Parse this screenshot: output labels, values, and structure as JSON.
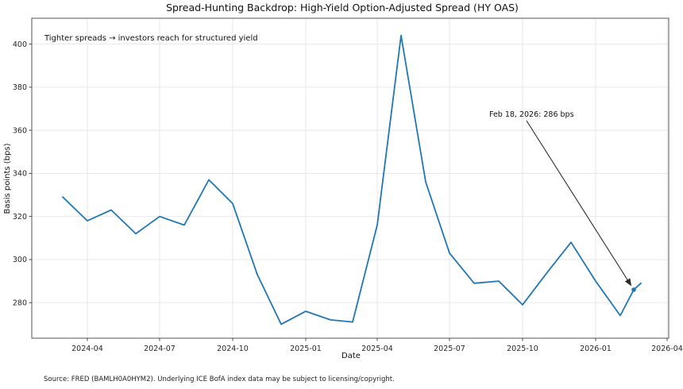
{
  "chart_data": {
    "type": "line",
    "title": "Spread-Hunting Backdrop: High-Yield Option-Adjusted Spread (HY OAS)",
    "xlabel": "Date",
    "ylabel": "Basis points (bps)",
    "source": "Source: FRED (BAMLH0A0HYM2). Underlying ICE BofA index data may be subject to licensing/copyright.",
    "grid": true,
    "legend": "none",
    "ylim": [
      263.5,
      412
    ],
    "xlim": [
      "2024-01-22",
      "2026-04-03"
    ],
    "yticks": [
      280,
      300,
      320,
      340,
      360,
      380,
      400
    ],
    "xticks": [
      {
        "date": "2024-04-01",
        "label": "2024-04"
      },
      {
        "date": "2024-07-01",
        "label": "2024-07"
      },
      {
        "date": "2024-10-01",
        "label": "2024-10"
      },
      {
        "date": "2025-01-01",
        "label": "2025-01"
      },
      {
        "date": "2025-04-01",
        "label": "2025-04"
      },
      {
        "date": "2025-07-01",
        "label": "2025-07"
      },
      {
        "date": "2025-10-01",
        "label": "2025-10"
      },
      {
        "date": "2026-01-01",
        "label": "2026-01"
      },
      {
        "date": "2026-04-01",
        "label": "2026-04"
      }
    ],
    "series": [
      {
        "name": "High-Yield OAS",
        "color": "#1f77b4",
        "points": [
          [
            "2024-03-01",
            329
          ],
          [
            "2024-04-01",
            318
          ],
          [
            "2024-05-01",
            323
          ],
          [
            "2024-06-01",
            312
          ],
          [
            "2024-07-01",
            320
          ],
          [
            "2024-08-01",
            316
          ],
          [
            "2024-09-01",
            337
          ],
          [
            "2024-10-01",
            326
          ],
          [
            "2024-11-01",
            293
          ],
          [
            "2024-12-01",
            270
          ],
          [
            "2025-01-01",
            276
          ],
          [
            "2025-02-01",
            272
          ],
          [
            "2025-03-01",
            271
          ],
          [
            "2025-04-01",
            316
          ],
          [
            "2025-05-01",
            404
          ],
          [
            "2025-06-01",
            336
          ],
          [
            "2025-07-01",
            303
          ],
          [
            "2025-08-01",
            289
          ],
          [
            "2025-09-01",
            290
          ],
          [
            "2025-10-01",
            279
          ],
          [
            "2025-11-01",
            294
          ],
          [
            "2025-12-01",
            308
          ],
          [
            "2026-01-01",
            290
          ],
          [
            "2026-02-01",
            274
          ],
          [
            "2026-02-18",
            286
          ],
          [
            "2026-02-27",
            289
          ]
        ]
      }
    ],
    "annotations": {
      "note": "Tighter spreads → investors reach for structured yield",
      "point_label": {
        "text": "Feb 18, 2026: 286 bps",
        "date": "2026-02-18",
        "value": 286,
        "marker_color": "#1f77b4"
      }
    }
  }
}
